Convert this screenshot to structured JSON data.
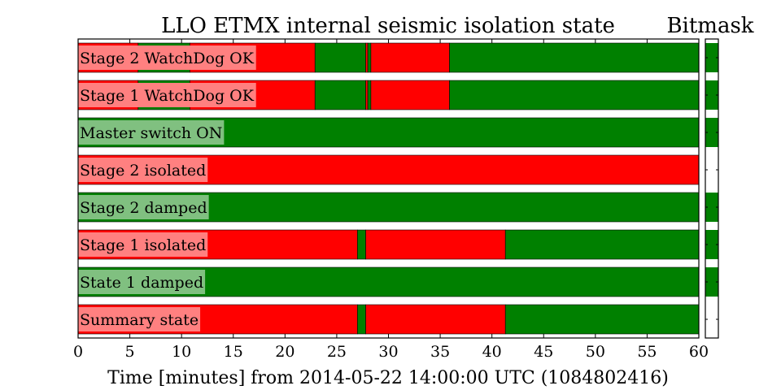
{
  "chart_data": {
    "type": "bar",
    "title": "LLO ETMX internal seismic isolation state",
    "side_title": "Bitmask",
    "xlabel": "Time [minutes] from 2014-05-22 14:00:00 UTC (1084802416)",
    "xlim": [
      0,
      60
    ],
    "xticks": [
      0,
      5,
      10,
      15,
      20,
      25,
      30,
      35,
      40,
      45,
      50,
      55,
      60
    ],
    "colors": {
      "on": "#008000",
      "off": "#ff0000"
    },
    "rows": [
      {
        "label": "Stage 2 WatchDog OK",
        "label_state": "off",
        "bitmask": "on",
        "segments": [
          [
            0,
            5.8,
            "off"
          ],
          [
            5.8,
            10.8,
            "on"
          ],
          [
            10.8,
            22.9,
            "off"
          ],
          [
            22.9,
            27.8,
            "on"
          ],
          [
            27.8,
            28.0,
            "off"
          ],
          [
            28.0,
            28.3,
            "on"
          ],
          [
            28.3,
            35.9,
            "off"
          ],
          [
            35.9,
            60,
            "on"
          ]
        ]
      },
      {
        "label": "Stage 1 WatchDog OK",
        "label_state": "off",
        "bitmask": "on",
        "segments": [
          [
            0,
            5.8,
            "off"
          ],
          [
            5.8,
            10.8,
            "on"
          ],
          [
            10.8,
            22.9,
            "off"
          ],
          [
            22.9,
            27.8,
            "on"
          ],
          [
            27.8,
            28.0,
            "off"
          ],
          [
            28.0,
            28.3,
            "on"
          ],
          [
            28.3,
            35.9,
            "off"
          ],
          [
            35.9,
            60,
            "on"
          ]
        ]
      },
      {
        "label": "Master switch ON",
        "label_state": "on",
        "bitmask": "on",
        "segments": [
          [
            0,
            60,
            "on"
          ]
        ]
      },
      {
        "label": "Stage 2 isolated",
        "label_state": "off",
        "bitmask": "off",
        "segments": [
          [
            0,
            60,
            "off"
          ]
        ]
      },
      {
        "label": "Stage 2 damped",
        "label_state": "on",
        "bitmask": "on",
        "segments": [
          [
            0,
            60,
            "on"
          ]
        ]
      },
      {
        "label": "Stage 1 isolated",
        "label_state": "off",
        "bitmask": "on",
        "segments": [
          [
            0,
            27.0,
            "off"
          ],
          [
            27.0,
            27.8,
            "on"
          ],
          [
            27.8,
            41.3,
            "off"
          ],
          [
            41.3,
            60,
            "on"
          ]
        ]
      },
      {
        "label": "State 1 damped",
        "label_state": "on",
        "bitmask": "on",
        "segments": [
          [
            0,
            60,
            "on"
          ]
        ]
      },
      {
        "label": "Summary state",
        "label_state": "off",
        "bitmask": "off",
        "segments": [
          [
            0,
            27.0,
            "off"
          ],
          [
            27.0,
            27.8,
            "on"
          ],
          [
            27.8,
            41.3,
            "off"
          ],
          [
            41.3,
            60,
            "on"
          ]
        ]
      }
    ]
  }
}
